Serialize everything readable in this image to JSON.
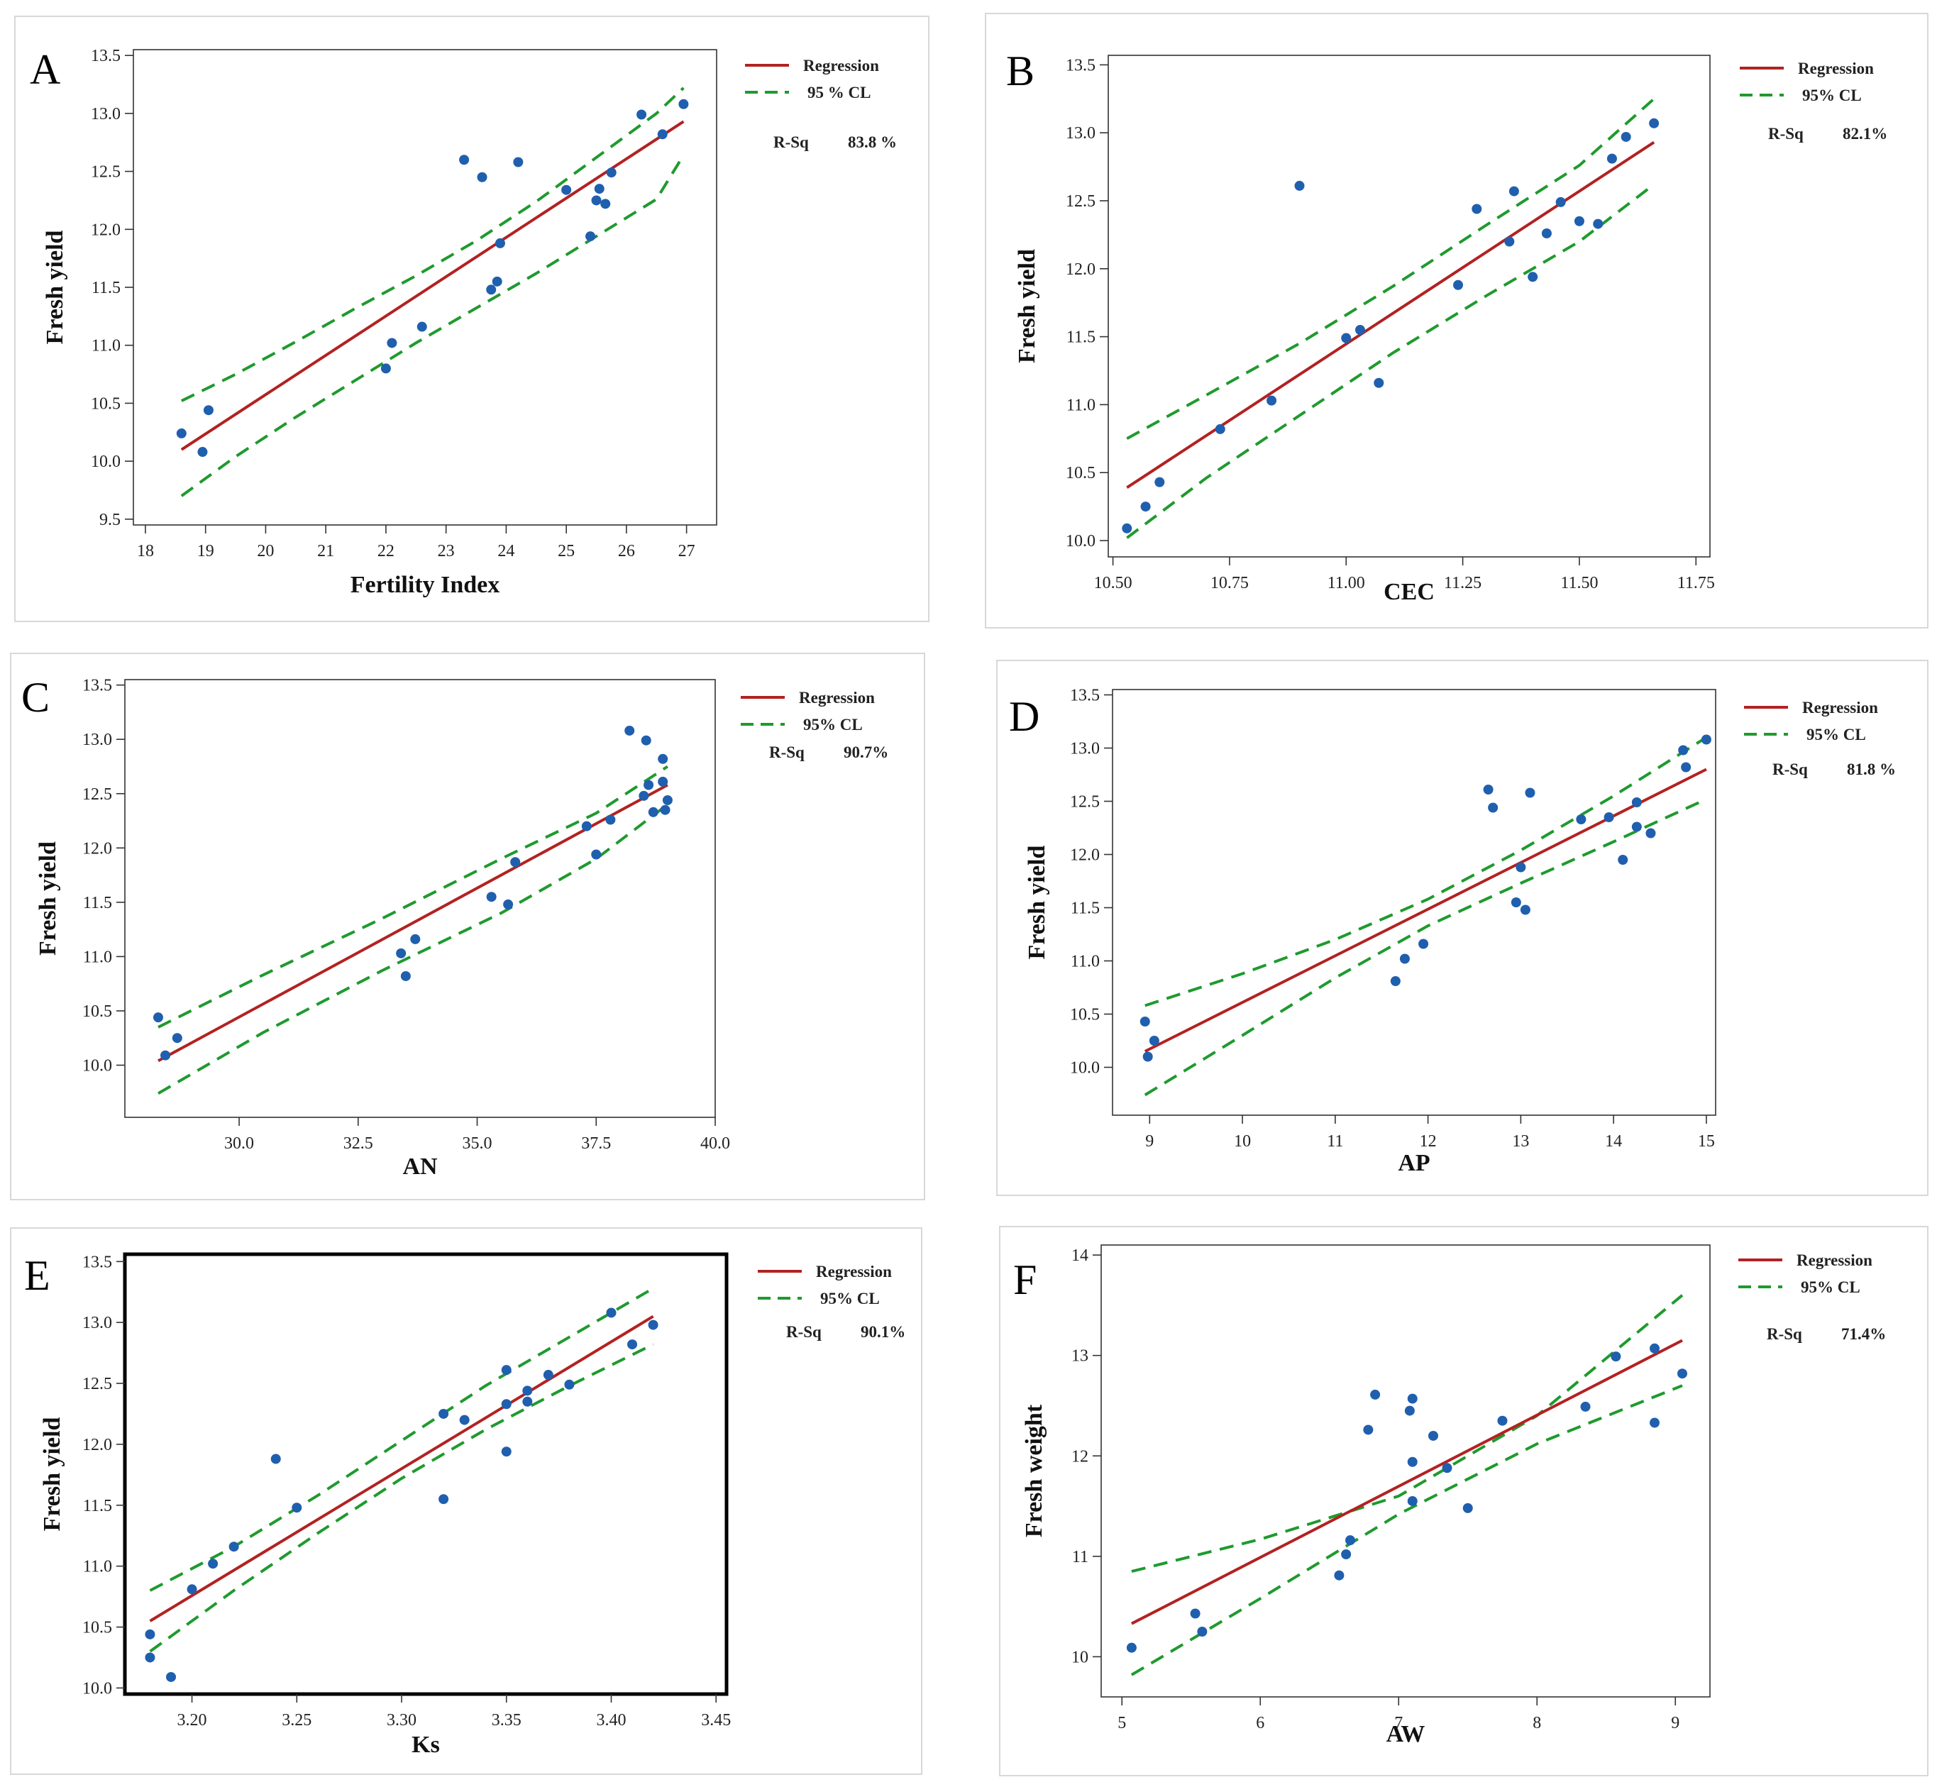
{
  "figure": {
    "colors": {
      "regression": "#b22222",
      "cl": "#1f9a2e",
      "points": "#1f5fae",
      "axis": "#222222"
    },
    "legend_regression": "Regression",
    "rsq_label": "R-Sq"
  },
  "chart_data": [
    {
      "panel": "A",
      "type": "scatter",
      "xlabel": "Fertility Index",
      "ylabel": "Fresh yield",
      "xlim": [
        17.8,
        27.5
      ],
      "ylim": [
        9.45,
        13.55
      ],
      "xticks": [
        "18",
        "19",
        "20",
        "21",
        "22",
        "23",
        "24",
        "25",
        "26",
        "27"
      ],
      "yticks": [
        "9.5",
        "10.0",
        "10.5",
        "11.0",
        "11.5",
        "12.0",
        "12.5",
        "13.0",
        "13.5"
      ],
      "legend_cl": "95 % CL",
      "rsq": "83.8 %",
      "points": [
        [
          18.6,
          10.24
        ],
        [
          18.95,
          10.08
        ],
        [
          19.05,
          10.44
        ],
        [
          22.0,
          10.8
        ],
        [
          22.1,
          11.02
        ],
        [
          22.6,
          11.16
        ],
        [
          23.3,
          12.6
        ],
        [
          23.6,
          12.45
        ],
        [
          23.75,
          11.48
        ],
        [
          23.85,
          11.55
        ],
        [
          23.9,
          11.88
        ],
        [
          24.2,
          12.58
        ],
        [
          25.0,
          12.34
        ],
        [
          25.4,
          11.94
        ],
        [
          25.5,
          12.25
        ],
        [
          25.55,
          12.35
        ],
        [
          25.65,
          12.22
        ],
        [
          25.75,
          12.49
        ],
        [
          26.25,
          12.99
        ],
        [
          26.6,
          12.82
        ],
        [
          26.95,
          13.08
        ]
      ],
      "regression": [
        [
          18.6,
          10.1
        ],
        [
          26.95,
          12.93
        ]
      ],
      "cl_upper": [
        [
          18.6,
          10.52
        ],
        [
          19.5,
          10.75
        ],
        [
          20.5,
          11.03
        ],
        [
          21.5,
          11.32
        ],
        [
          22.5,
          11.6
        ],
        [
          23.5,
          11.9
        ],
        [
          24.5,
          12.24
        ],
        [
          25.5,
          12.62
        ],
        [
          26.5,
          13.0
        ],
        [
          26.95,
          13.22
        ]
      ],
      "cl_lower": [
        [
          18.6,
          9.7
        ],
        [
          19.5,
          10.04
        ],
        [
          20.5,
          10.38
        ],
        [
          21.5,
          10.7
        ],
        [
          22.5,
          11.02
        ],
        [
          23.5,
          11.32
        ],
        [
          24.5,
          11.62
        ],
        [
          25.5,
          11.94
        ],
        [
          26.5,
          12.26
        ],
        [
          26.95,
          12.64
        ]
      ]
    },
    {
      "panel": "B",
      "type": "scatter",
      "xlabel": "CEC",
      "ylabel": "Fresh yield",
      "xlim": [
        10.49,
        11.78
      ],
      "ylim": [
        9.88,
        13.57
      ],
      "xticks": [
        "10.50",
        "10.75",
        "11.00",
        "11.25",
        "11.50",
        "11.75"
      ],
      "yticks": [
        "10.0",
        "10.5",
        "11.0",
        "11.5",
        "12.0",
        "12.5",
        "13.0",
        "13.5"
      ],
      "legend_cl": "95% CL",
      "rsq": "82.1%",
      "points": [
        [
          10.53,
          10.09
        ],
        [
          10.57,
          10.25
        ],
        [
          10.6,
          10.43
        ],
        [
          10.73,
          10.82
        ],
        [
          10.84,
          11.03
        ],
        [
          10.9,
          12.61
        ],
        [
          11.0,
          11.49
        ],
        [
          11.03,
          11.55
        ],
        [
          11.07,
          11.16
        ],
        [
          11.24,
          11.88
        ],
        [
          11.28,
          12.44
        ],
        [
          11.35,
          12.2
        ],
        [
          11.36,
          12.57
        ],
        [
          11.4,
          11.94
        ],
        [
          11.43,
          12.26
        ],
        [
          11.46,
          12.49
        ],
        [
          11.5,
          12.35
        ],
        [
          11.54,
          12.33
        ],
        [
          11.57,
          12.81
        ],
        [
          11.6,
          12.97
        ],
        [
          11.66,
          13.07
        ]
      ],
      "regression": [
        [
          10.53,
          10.39
        ],
        [
          11.66,
          12.93
        ]
      ],
      "cl_upper": [
        [
          10.53,
          10.75
        ],
        [
          10.7,
          11.07
        ],
        [
          10.9,
          11.45
        ],
        [
          11.1,
          11.87
        ],
        [
          11.3,
          12.32
        ],
        [
          11.5,
          12.76
        ],
        [
          11.66,
          13.25
        ]
      ],
      "cl_lower": [
        [
          10.53,
          10.02
        ],
        [
          10.7,
          10.46
        ],
        [
          10.9,
          10.92
        ],
        [
          11.1,
          11.38
        ],
        [
          11.3,
          11.8
        ],
        [
          11.5,
          12.2
        ],
        [
          11.66,
          12.62
        ]
      ]
    },
    {
      "panel": "C",
      "type": "scatter",
      "xlabel": "AN",
      "ylabel": "Fresh yield",
      "xlim": [
        27.6,
        40.0
      ],
      "ylim": [
        9.52,
        13.55
      ],
      "xticks": [
        "30.0",
        "32.5",
        "35.0",
        "37.5",
        "40.0"
      ],
      "yticks": [
        "10.0",
        "10.5",
        "11.0",
        "11.5",
        "12.0",
        "12.5",
        "13.0",
        "13.5"
      ],
      "legend_cl": "95% CL",
      "rsq": "90.7%",
      "points": [
        [
          28.3,
          10.44
        ],
        [
          28.45,
          10.09
        ],
        [
          28.7,
          10.25
        ],
        [
          33.4,
          11.03
        ],
        [
          33.5,
          10.82
        ],
        [
          33.7,
          11.16
        ],
        [
          35.3,
          11.55
        ],
        [
          35.65,
          11.48
        ],
        [
          35.8,
          11.87
        ],
        [
          37.3,
          12.2
        ],
        [
          37.5,
          11.94
        ],
        [
          37.8,
          12.26
        ],
        [
          38.2,
          13.08
        ],
        [
          38.5,
          12.48
        ],
        [
          38.55,
          12.99
        ],
        [
          38.6,
          12.58
        ],
        [
          38.7,
          12.33
        ],
        [
          38.9,
          12.82
        ],
        [
          38.9,
          12.61
        ],
        [
          38.95,
          12.35
        ],
        [
          39.0,
          12.44
        ]
      ],
      "regression": [
        [
          28.3,
          10.04
        ],
        [
          39.0,
          12.58
        ]
      ],
      "cl_upper": [
        [
          28.3,
          10.35
        ],
        [
          30.5,
          10.83
        ],
        [
          33.0,
          11.35
        ],
        [
          35.5,
          11.9
        ],
        [
          37.5,
          12.32
        ],
        [
          39.0,
          12.75
        ]
      ],
      "cl_lower": [
        [
          28.3,
          9.74
        ],
        [
          30.5,
          10.3
        ],
        [
          33.0,
          10.87
        ],
        [
          35.5,
          11.4
        ],
        [
          37.5,
          11.9
        ],
        [
          39.0,
          12.4
        ]
      ]
    },
    {
      "panel": "D",
      "type": "scatter",
      "xlabel": "AP",
      "ylabel": "Fresh yield",
      "xlim": [
        8.6,
        15.1
      ],
      "ylim": [
        9.55,
        13.55
      ],
      "xticks": [
        "9",
        "10",
        "11",
        "12",
        "13",
        "14",
        "15"
      ],
      "yticks": [
        "10.0",
        "10.5",
        "11.0",
        "11.5",
        "12.0",
        "12.5",
        "13.0",
        "13.5"
      ],
      "legend_cl": "95% CL",
      "rsq": "81.8 %",
      "points": [
        [
          8.95,
          10.43
        ],
        [
          8.98,
          10.1
        ],
        [
          9.05,
          10.25
        ],
        [
          11.65,
          10.81
        ],
        [
          11.75,
          11.02
        ],
        [
          11.95,
          11.16
        ],
        [
          12.65,
          12.61
        ],
        [
          12.7,
          12.44
        ],
        [
          12.95,
          11.55
        ],
        [
          13.0,
          11.88
        ],
        [
          13.05,
          11.48
        ],
        [
          13.1,
          12.58
        ],
        [
          13.65,
          12.33
        ],
        [
          13.95,
          12.35
        ],
        [
          14.1,
          11.95
        ],
        [
          14.25,
          12.49
        ],
        [
          14.25,
          12.26
        ],
        [
          14.4,
          12.2
        ],
        [
          14.75,
          12.98
        ],
        [
          14.78,
          12.82
        ],
        [
          15.0,
          13.08
        ]
      ],
      "regression": [
        [
          8.95,
          10.15
        ],
        [
          15.0,
          12.8
        ]
      ],
      "cl_upper": [
        [
          8.95,
          10.58
        ],
        [
          10.0,
          10.88
        ],
        [
          11.0,
          11.2
        ],
        [
          12.0,
          11.58
        ],
        [
          13.0,
          12.04
        ],
        [
          14.0,
          12.55
        ],
        [
          15.0,
          13.1
        ]
      ],
      "cl_lower": [
        [
          8.95,
          9.74
        ],
        [
          10.0,
          10.3
        ],
        [
          11.0,
          10.84
        ],
        [
          12.0,
          11.33
        ],
        [
          13.0,
          11.73
        ],
        [
          14.0,
          12.12
        ],
        [
          15.0,
          12.52
        ]
      ]
    },
    {
      "panel": "E",
      "type": "scatter",
      "xlabel": "Ks",
      "ylabel": "Fresh yield",
      "xlim": [
        3.168,
        3.455
      ],
      "ylim": [
        9.95,
        13.56
      ],
      "xticks": [
        "3.20",
        "3.25",
        "3.30",
        "3.35",
        "3.40",
        "3.45"
      ],
      "yticks": [
        "10.0",
        "10.5",
        "11.0",
        "11.5",
        "12.0",
        "12.5",
        "13.0",
        "13.5"
      ],
      "legend_cl": "95% CL",
      "rsq": "90.1%",
      "points": [
        [
          3.18,
          10.44
        ],
        [
          3.18,
          10.25
        ],
        [
          3.19,
          10.09
        ],
        [
          3.2,
          10.81
        ],
        [
          3.21,
          11.02
        ],
        [
          3.22,
          11.16
        ],
        [
          3.24,
          11.88
        ],
        [
          3.25,
          11.48
        ],
        [
          3.32,
          12.25
        ],
        [
          3.32,
          11.55
        ],
        [
          3.33,
          12.2
        ],
        [
          3.35,
          12.61
        ],
        [
          3.35,
          12.33
        ],
        [
          3.35,
          11.94
        ],
        [
          3.36,
          12.44
        ],
        [
          3.36,
          12.35
        ],
        [
          3.37,
          12.57
        ],
        [
          3.38,
          12.49
        ],
        [
          3.4,
          13.08
        ],
        [
          3.41,
          12.82
        ],
        [
          3.42,
          12.98
        ]
      ],
      "regression": [
        [
          3.18,
          10.55
        ],
        [
          3.42,
          13.05
        ]
      ],
      "cl_upper": [
        [
          3.18,
          10.8
        ],
        [
          3.22,
          11.16
        ],
        [
          3.26,
          11.58
        ],
        [
          3.3,
          12.03
        ],
        [
          3.34,
          12.48
        ],
        [
          3.38,
          12.88
        ],
        [
          3.42,
          13.28
        ]
      ],
      "cl_lower": [
        [
          3.18,
          10.3
        ],
        [
          3.22,
          10.8
        ],
        [
          3.26,
          11.27
        ],
        [
          3.3,
          11.72
        ],
        [
          3.34,
          12.12
        ],
        [
          3.38,
          12.48
        ],
        [
          3.42,
          12.82
        ]
      ]
    },
    {
      "panel": "F",
      "type": "scatter",
      "xlabel": "AW",
      "ylabel": "Fresh weight",
      "xlim": [
        4.85,
        9.25
      ],
      "ylim": [
        9.6,
        14.1
      ],
      "xticks": [
        "5",
        "6",
        "7",
        "8",
        "9"
      ],
      "yticks": [
        "10",
        "11",
        "12",
        "13",
        "14"
      ],
      "legend_cl": "95% CL",
      "rsq": "71.4%",
      "points": [
        [
          5.07,
          10.09
        ],
        [
          5.53,
          10.43
        ],
        [
          5.58,
          10.25
        ],
        [
          6.57,
          10.81
        ],
        [
          6.62,
          11.02
        ],
        [
          6.65,
          11.16
        ],
        [
          6.78,
          12.26
        ],
        [
          6.83,
          12.61
        ],
        [
          7.08,
          12.45
        ],
        [
          7.1,
          12.57
        ],
        [
          7.1,
          11.94
        ],
        [
          7.1,
          11.55
        ],
        [
          7.25,
          12.2
        ],
        [
          7.35,
          11.88
        ],
        [
          7.5,
          11.48
        ],
        [
          7.75,
          12.35
        ],
        [
          8.35,
          12.49
        ],
        [
          8.57,
          12.99
        ],
        [
          8.85,
          13.07
        ],
        [
          8.85,
          12.33
        ],
        [
          9.05,
          12.82
        ]
      ],
      "regression": [
        [
          5.07,
          10.33
        ],
        [
          9.05,
          13.15
        ]
      ],
      "cl_upper": [
        [
          5.07,
          10.85
        ],
        [
          6.0,
          11.17
        ],
        [
          7.0,
          11.6
        ],
        [
          8.0,
          12.4
        ],
        [
          9.05,
          13.6
        ]
      ],
      "cl_lower": [
        [
          5.07,
          9.82
        ],
        [
          6.0,
          10.58
        ],
        [
          7.0,
          11.42
        ],
        [
          8.0,
          12.12
        ],
        [
          9.05,
          12.7
        ]
      ]
    }
  ]
}
